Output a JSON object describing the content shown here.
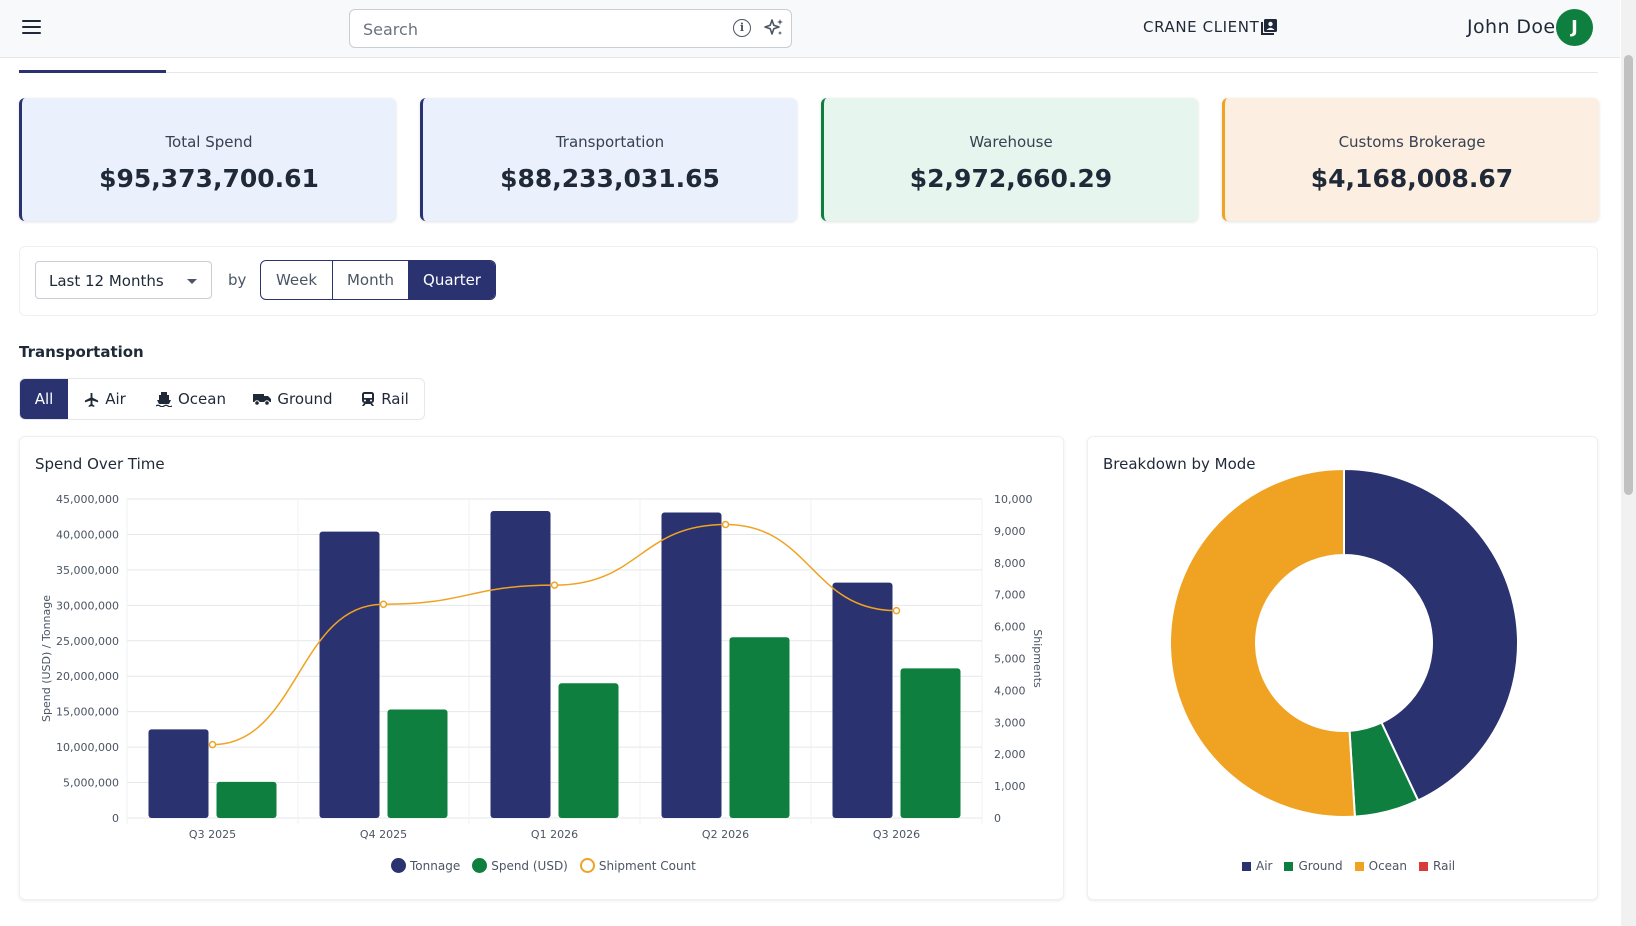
{
  "header": {
    "search_placeholder": "Search",
    "client_label": "CRANE CLIENT",
    "user_name": "John Doe",
    "avatar_initial": "J",
    "icons": [
      "menu-icon",
      "info-icon",
      "sparkle-icon",
      "contact-card-icon"
    ]
  },
  "cards": [
    {
      "label": "Total Spend",
      "value": "$95,373,700.61",
      "accent": "#2a3270",
      "bg": "#eaf0fc"
    },
    {
      "label": "Transportation",
      "value": "$88,233,031.65",
      "accent": "#2a3270",
      "bg": "#eaf0fc"
    },
    {
      "label": "Warehouse",
      "value": "$2,972,660.29",
      "accent": "#0e7f3e",
      "bg": "#e6f6ee"
    },
    {
      "label": "Customs Brokerage",
      "value": "$4,168,008.67",
      "accent": "#f0a323",
      "bg": "#fdeee2"
    }
  ],
  "filters": {
    "range_value": "Last 12 Months",
    "by_label": "by",
    "granularity": [
      "Week",
      "Month",
      "Quarter"
    ],
    "granularity_selected": "Quarter"
  },
  "transportation": {
    "title": "Transportation",
    "modes": [
      "All",
      "Air",
      "Ocean",
      "Ground",
      "Rail"
    ],
    "mode_selected": "All"
  },
  "colors": {
    "primary": "#2a3270",
    "green": "#0e7f3e",
    "orange": "#f0a323",
    "red": "#d93a3a"
  },
  "chart_data": [
    {
      "type": "bar",
      "title": "Spend Over Time",
      "categories": [
        "Q3 2025",
        "Q4 2025",
        "Q1 2026",
        "Q2 2026",
        "Q3 2026"
      ],
      "series": [
        {
          "name": "Tonnage",
          "type": "bar",
          "axis": "left",
          "color": "#2a3270",
          "values": [
            12500000,
            40400000,
            43300000,
            43100000,
            33200000
          ]
        },
        {
          "name": "Spend (USD)",
          "type": "bar",
          "axis": "left",
          "color": "#0e7f3e",
          "values": [
            5100000,
            15300000,
            19000000,
            25500000,
            21100000
          ]
        },
        {
          "name": "Shipment Count",
          "type": "line",
          "axis": "right",
          "color": "#f0a323",
          "values": [
            2300,
            6700,
            7300,
            9200,
            6500
          ]
        }
      ],
      "ylabel": "Spend (USD) / Tonnage",
      "ylim": [
        0,
        45000000
      ],
      "yticks": [
        "45,000,000",
        "40,000,000",
        "35,000,000",
        "30,000,000",
        "25,000,000",
        "20,000,000",
        "15,000,000",
        "10,000,000",
        "5,000,000",
        "0"
      ],
      "y2label": "Shipments",
      "y2lim": [
        0,
        10000
      ],
      "y2ticks": [
        "10,000",
        "9,000",
        "8,000",
        "7,000",
        "6,000",
        "5,000",
        "4,000",
        "3,000",
        "2,000",
        "1,000",
        "0"
      ],
      "grid": true,
      "legend": "bottom"
    },
    {
      "type": "pie",
      "title": "Breakdown by Mode",
      "labels": [
        "Air",
        "Ground",
        "Ocean",
        "Rail"
      ],
      "values": [
        43,
        6,
        51,
        0
      ],
      "colors": [
        "#2a3270",
        "#0e7f3e",
        "#f0a323",
        "#d93a3a"
      ],
      "legend": "bottom"
    }
  ]
}
